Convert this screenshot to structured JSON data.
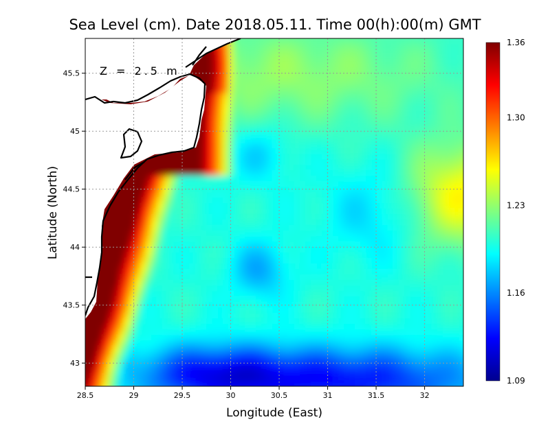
{
  "title": "Sea Level (cm). Date 2018.05.11. Time 00(h):00(m) GMT",
  "depth_label": "Z = 2.5 m",
  "x_axis": {
    "label": "Longitude (East)",
    "ticks": [
      "28.5",
      "29",
      "29.5",
      "30",
      "30.5",
      "31",
      "31.5",
      "32"
    ],
    "range": [
      28.5,
      32.4
    ]
  },
  "y_axis": {
    "label": "Latitude (North)",
    "ticks": [
      "43",
      "43.5",
      "44",
      "44.5",
      "45",
      "45.5"
    ],
    "range": [
      42.8,
      45.8
    ]
  },
  "colorbar": {
    "ticks": [
      "1.36",
      "1.30",
      "1.23",
      "1.16",
      "1.09"
    ],
    "min": 1.09,
    "max": 1.36,
    "colormap": "jet"
  },
  "chart_data": {
    "type": "heatmap",
    "title": "Sea Level (cm). Date 2018.05.11. Time 00(h):00(m) GMT",
    "xlabel": "Longitude (East)",
    "ylabel": "Latitude (North)",
    "xlim": [
      28.5,
      32.4
    ],
    "ylim": [
      42.8,
      45.8
    ],
    "grid": true,
    "value_range": [
      1.09,
      1.36
    ]
  },
  "colors": {
    "land": "#ffffff",
    "coastline": "#000000",
    "grid": "#aaaaaa"
  }
}
